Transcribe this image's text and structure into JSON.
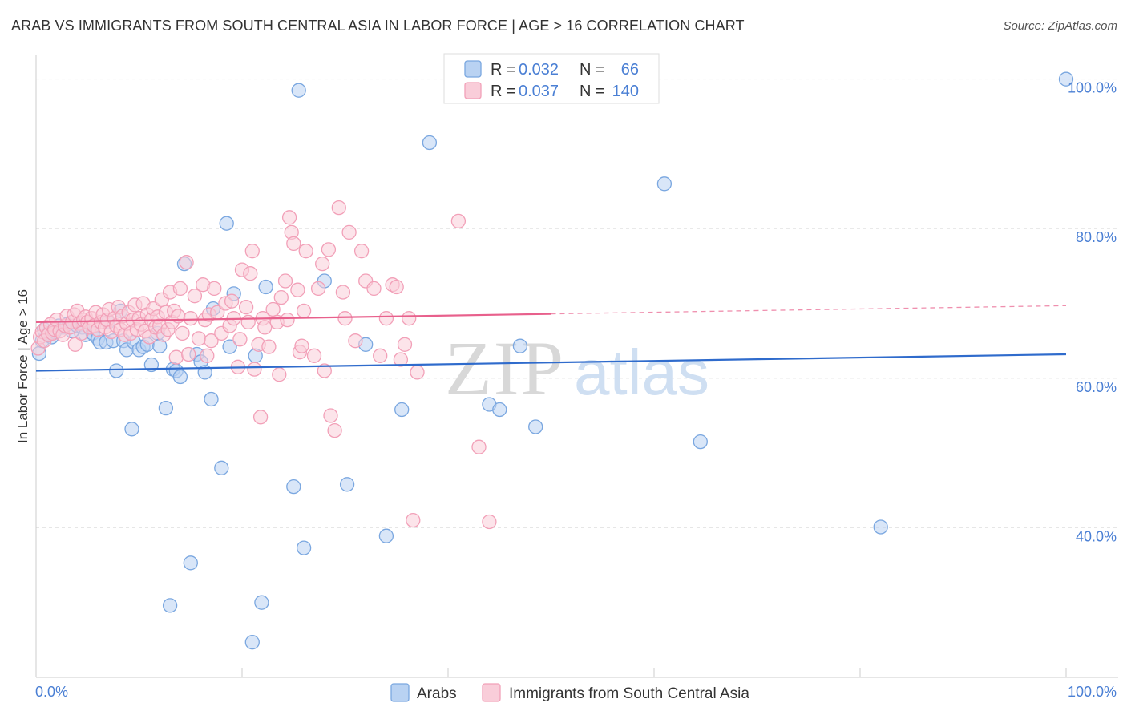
{
  "chart_data": {
    "type": "scatter",
    "title": "ARAB VS IMMIGRANTS FROM SOUTH CENTRAL ASIA IN LABOR FORCE | AGE > 16 CORRELATION CHART",
    "source": "Source: ZipAtlas.com",
    "ylabel": "In Labor Force | Age > 16",
    "xlabel": "",
    "xlim": [
      0,
      100
    ],
    "ylim": [
      20,
      102
    ],
    "x_tick_labels": [
      "0.0%",
      "100.0%"
    ],
    "y_ticks": [
      {
        "value": 100,
        "label": "100.0%"
      },
      {
        "value": 80,
        "label": "80.0%"
      },
      {
        "value": 60,
        "label": "60.0%"
      },
      {
        "value": 40,
        "label": "40.0%"
      }
    ],
    "legend": {
      "rows": [
        {
          "r_label": "R =",
          "r_value": "0.032",
          "n_label": "N =",
          "n_value": "66"
        },
        {
          "r_label": "R =",
          "r_value": "0.037",
          "n_label": "N =",
          "n_value": "140"
        }
      ]
    },
    "series": [
      {
        "name": "Arabs",
        "color": "#7aa7e0",
        "fill": "#b9d2f2",
        "line_color": "#2f6bcc",
        "trend": {
          "x0": 0,
          "y0": 61.0,
          "x1": 100,
          "y1": 63.2
        },
        "points": [
          [
            0.3,
            63.3
          ],
          [
            0.6,
            65.0
          ],
          [
            0.8,
            66.5
          ],
          [
            1.2,
            66.0
          ],
          [
            1.5,
            65.5
          ],
          [
            1.8,
            66.2
          ],
          [
            2.2,
            67.0
          ],
          [
            2.6,
            66.8
          ],
          [
            3.0,
            67.2
          ],
          [
            3.5,
            66.3
          ],
          [
            4.0,
            67.0
          ],
          [
            4.5,
            66.8
          ],
          [
            4.8,
            65.8
          ],
          [
            5.5,
            66.0
          ],
          [
            6.0,
            65.3
          ],
          [
            6.2,
            64.8
          ],
          [
            6.8,
            64.8
          ],
          [
            7.0,
            67.5
          ],
          [
            7.5,
            65.0
          ],
          [
            7.8,
            61.0
          ],
          [
            8.2,
            69.0
          ],
          [
            8.5,
            65.0
          ],
          [
            8.8,
            63.8
          ],
          [
            9.3,
            53.2
          ],
          [
            9.5,
            64.8
          ],
          [
            10.0,
            63.8
          ],
          [
            10.4,
            64.2
          ],
          [
            10.8,
            64.5
          ],
          [
            11.2,
            61.8
          ],
          [
            11.8,
            66.0
          ],
          [
            12.0,
            64.3
          ],
          [
            12.6,
            56.0
          ],
          [
            13.0,
            29.6
          ],
          [
            13.3,
            61.2
          ],
          [
            13.6,
            61.0
          ],
          [
            14.0,
            60.2
          ],
          [
            14.4,
            75.3
          ],
          [
            15.0,
            35.3
          ],
          [
            15.6,
            63.2
          ],
          [
            16.0,
            62.2
          ],
          [
            16.4,
            60.8
          ],
          [
            17.0,
            57.2
          ],
          [
            17.2,
            69.3
          ],
          [
            18.0,
            48.0
          ],
          [
            18.5,
            80.7
          ],
          [
            18.8,
            64.2
          ],
          [
            19.2,
            71.3
          ],
          [
            21.0,
            24.7
          ],
          [
            21.3,
            63.0
          ],
          [
            21.9,
            30.0
          ],
          [
            22.3,
            72.2
          ],
          [
            25.0,
            45.5
          ],
          [
            25.5,
            98.5
          ],
          [
            26.0,
            37.3
          ],
          [
            28.0,
            73.0
          ],
          [
            30.2,
            45.8
          ],
          [
            32.0,
            64.5
          ],
          [
            34.0,
            38.9
          ],
          [
            35.5,
            55.8
          ],
          [
            38.2,
            91.5
          ],
          [
            44.0,
            56.5
          ],
          [
            45.0,
            55.8
          ],
          [
            47.0,
            64.3
          ],
          [
            48.5,
            53.5
          ],
          [
            61.0,
            86.0
          ],
          [
            64.5,
            51.5
          ],
          [
            82.0,
            40.1
          ],
          [
            100.0,
            100.0
          ]
        ]
      },
      {
        "name": "Immigrants from South Central Asia",
        "color": "#f2a0b8",
        "fill": "#f9cdd9",
        "line_color": "#e8608c",
        "trend": {
          "x0": 0,
          "y0": 67.5,
          "x1": 50,
          "y1": 68.6
        },
        "trend_dash": {
          "x0": 50,
          "y0": 68.6,
          "x1": 100,
          "y1": 69.7
        },
        "points": [
          [
            0.2,
            64.0
          ],
          [
            0.4,
            65.5
          ],
          [
            0.6,
            66.2
          ],
          [
            0.8,
            65.0
          ],
          [
            1.0,
            66.8
          ],
          [
            1.2,
            65.8
          ],
          [
            1.4,
            67.2
          ],
          [
            1.6,
            66.0
          ],
          [
            1.8,
            66.5
          ],
          [
            2.0,
            67.8
          ],
          [
            2.3,
            66.3
          ],
          [
            2.6,
            65.8
          ],
          [
            2.8,
            67.0
          ],
          [
            3.0,
            68.3
          ],
          [
            3.3,
            66.8
          ],
          [
            3.5,
            67.5
          ],
          [
            3.7,
            68.5
          ],
          [
            3.8,
            64.5
          ],
          [
            4.0,
            69.0
          ],
          [
            4.2,
            67.3
          ],
          [
            4.4,
            66.0
          ],
          [
            4.6,
            67.8
          ],
          [
            4.8,
            68.2
          ],
          [
            5.0,
            67.5
          ],
          [
            5.2,
            66.8
          ],
          [
            5.4,
            68.0
          ],
          [
            5.6,
            67.0
          ],
          [
            5.8,
            68.8
          ],
          [
            6.0,
            66.5
          ],
          [
            6.3,
            67.5
          ],
          [
            6.5,
            68.5
          ],
          [
            6.7,
            66.8
          ],
          [
            6.9,
            67.8
          ],
          [
            7.1,
            69.2
          ],
          [
            7.3,
            66.2
          ],
          [
            7.6,
            68.0
          ],
          [
            7.8,
            67.0
          ],
          [
            8.0,
            69.5
          ],
          [
            8.2,
            66.5
          ],
          [
            8.4,
            68.3
          ],
          [
            8.6,
            65.8
          ],
          [
            8.8,
            67.3
          ],
          [
            9.0,
            68.8
          ],
          [
            9.2,
            66.0
          ],
          [
            9.4,
            67.8
          ],
          [
            9.6,
            69.8
          ],
          [
            9.8,
            66.5
          ],
          [
            10.0,
            68.0
          ],
          [
            10.2,
            67.2
          ],
          [
            10.4,
            70.0
          ],
          [
            10.6,
            66.3
          ],
          [
            10.8,
            68.5
          ],
          [
            11.0,
            65.5
          ],
          [
            11.2,
            67.8
          ],
          [
            11.4,
            69.3
          ],
          [
            11.6,
            66.8
          ],
          [
            11.8,
            68.2
          ],
          [
            12.0,
            67.0
          ],
          [
            12.2,
            70.5
          ],
          [
            12.4,
            65.8
          ],
          [
            12.6,
            68.8
          ],
          [
            12.8,
            66.5
          ],
          [
            13.0,
            71.5
          ],
          [
            13.2,
            67.5
          ],
          [
            13.4,
            69.0
          ],
          [
            13.6,
            62.8
          ],
          [
            13.8,
            68.3
          ],
          [
            14.0,
            72.0
          ],
          [
            14.2,
            66.0
          ],
          [
            14.6,
            75.5
          ],
          [
            14.8,
            63.2
          ],
          [
            15.0,
            68.0
          ],
          [
            15.4,
            71.0
          ],
          [
            15.8,
            65.3
          ],
          [
            16.2,
            72.5
          ],
          [
            16.4,
            67.8
          ],
          [
            16.6,
            63.0
          ],
          [
            16.8,
            68.5
          ],
          [
            17.0,
            65.0
          ],
          [
            17.3,
            72.0
          ],
          [
            17.6,
            68.8
          ],
          [
            18.0,
            66.0
          ],
          [
            18.4,
            70.0
          ],
          [
            18.8,
            67.0
          ],
          [
            19.0,
            70.3
          ],
          [
            19.2,
            68.0
          ],
          [
            19.6,
            61.5
          ],
          [
            19.8,
            65.2
          ],
          [
            20.0,
            74.5
          ],
          [
            20.4,
            69.5
          ],
          [
            20.6,
            67.5
          ],
          [
            20.8,
            74.0
          ],
          [
            21.0,
            77.0
          ],
          [
            21.2,
            61.2
          ],
          [
            21.6,
            64.5
          ],
          [
            21.8,
            54.8
          ],
          [
            22.0,
            68.0
          ],
          [
            22.2,
            66.8
          ],
          [
            22.6,
            64.2
          ],
          [
            23.0,
            69.2
          ],
          [
            23.4,
            67.5
          ],
          [
            23.6,
            60.5
          ],
          [
            23.8,
            70.8
          ],
          [
            24.2,
            73.0
          ],
          [
            24.4,
            67.8
          ],
          [
            24.6,
            81.5
          ],
          [
            24.8,
            79.5
          ],
          [
            25.0,
            78.0
          ],
          [
            25.4,
            71.8
          ],
          [
            25.6,
            63.5
          ],
          [
            25.8,
            64.3
          ],
          [
            26.0,
            69.0
          ],
          [
            26.2,
            77.0
          ],
          [
            27.0,
            63.0
          ],
          [
            27.4,
            72.0
          ],
          [
            27.8,
            75.3
          ],
          [
            28.0,
            61.0
          ],
          [
            28.4,
            77.2
          ],
          [
            28.6,
            55.0
          ],
          [
            29.0,
            53.0
          ],
          [
            29.4,
            82.8
          ],
          [
            29.8,
            71.5
          ],
          [
            30.0,
            68.0
          ],
          [
            30.4,
            79.5
          ],
          [
            31.0,
            65.0
          ],
          [
            31.6,
            77.0
          ],
          [
            32.0,
            73.0
          ],
          [
            32.8,
            72.0
          ],
          [
            33.4,
            63.0
          ],
          [
            34.0,
            68.0
          ],
          [
            34.6,
            72.5
          ],
          [
            35.0,
            72.2
          ],
          [
            35.4,
            62.5
          ],
          [
            35.8,
            64.5
          ],
          [
            36.2,
            68.0
          ],
          [
            36.6,
            41.0
          ],
          [
            37.0,
            60.8
          ],
          [
            41.0,
            81.0
          ],
          [
            43.0,
            50.8
          ],
          [
            44.0,
            40.8
          ]
        ]
      }
    ]
  }
}
